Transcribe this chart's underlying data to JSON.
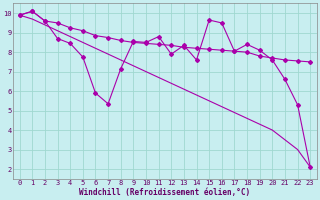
{
  "xlabel": "Windchill (Refroidissement éolien,°C)",
  "bg_color": "#c8eef0",
  "grid_color": "#a0d8d0",
  "line_color": "#aa00aa",
  "line1_x": [
    0,
    1,
    2,
    3,
    4,
    5,
    6,
    7,
    8,
    9,
    10,
    11,
    12,
    13,
    14,
    15,
    16,
    17,
    18,
    19,
    20,
    21,
    22,
    23
  ],
  "line1_y": [
    9.9,
    10.1,
    9.6,
    9.5,
    9.25,
    9.1,
    8.85,
    8.75,
    8.6,
    8.5,
    8.45,
    8.4,
    8.35,
    8.25,
    8.2,
    8.15,
    8.1,
    8.05,
    8.0,
    7.8,
    7.7,
    7.6,
    7.55,
    7.5
  ],
  "line2_x": [
    0,
    1,
    2,
    3,
    4,
    5,
    6,
    7,
    8,
    9,
    10,
    11,
    12,
    13,
    14,
    15,
    16,
    17,
    18,
    19,
    20,
    21,
    22,
    23
  ],
  "line2_y": [
    9.9,
    10.1,
    9.6,
    8.7,
    8.45,
    7.75,
    5.9,
    5.35,
    7.15,
    8.55,
    8.5,
    8.8,
    7.9,
    8.35,
    7.6,
    9.65,
    9.5,
    8.05,
    8.4,
    8.1,
    7.6,
    6.6,
    5.3,
    2.1
  ],
  "line3_x": [
    0,
    1,
    2,
    3,
    4,
    5,
    6,
    7,
    8,
    9,
    10,
    11,
    12,
    13,
    14,
    15,
    16,
    17,
    18,
    19,
    20,
    21,
    22,
    23
  ],
  "line3_y": [
    9.9,
    9.7,
    9.4,
    9.1,
    8.8,
    8.5,
    8.2,
    7.9,
    7.6,
    7.3,
    7.0,
    6.7,
    6.4,
    6.1,
    5.8,
    5.5,
    5.2,
    4.9,
    4.6,
    4.3,
    4.0,
    3.5,
    3.0,
    2.1
  ],
  "xlim": [
    -0.5,
    23.5
  ],
  "ylim": [
    1.5,
    10.5
  ],
  "yticks": [
    2,
    3,
    4,
    5,
    6,
    7,
    8,
    9,
    10
  ],
  "xticks": [
    0,
    1,
    2,
    3,
    4,
    5,
    6,
    7,
    8,
    9,
    10,
    11,
    12,
    13,
    14,
    15,
    16,
    17,
    18,
    19,
    20,
    21,
    22,
    23
  ],
  "font_size": 5.0,
  "xlabel_size": 5.5,
  "lw": 0.8,
  "ms": 2.0
}
